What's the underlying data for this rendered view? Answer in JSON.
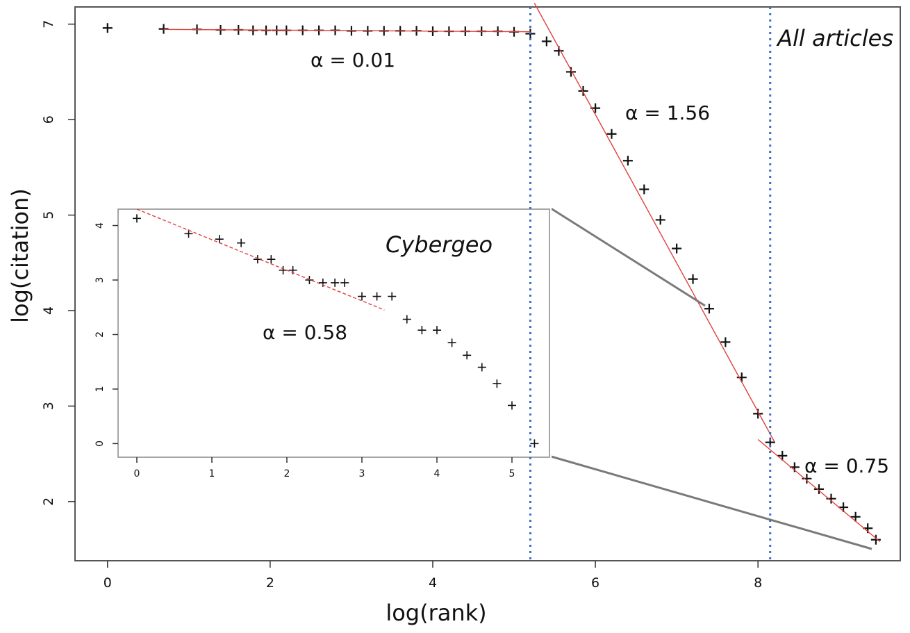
{
  "chart_data": [
    {
      "type": "scatter",
      "title": "All articles",
      "xlabel": "log(rank)",
      "ylabel": "log(citation)",
      "xlim": [
        -0.4,
        9.75
      ],
      "ylim": [
        1.38,
        7.18
      ],
      "xticks": [
        0,
        2,
        4,
        6,
        8
      ],
      "yticks": [
        2,
        3,
        4,
        5,
        6,
        7
      ],
      "grid": false,
      "series": [
        {
          "points": [
            [
              0,
              6.96
            ],
            [
              0.69,
              6.95
            ],
            [
              1.1,
              6.945
            ],
            [
              1.39,
              6.94
            ],
            [
              1.61,
              6.94
            ],
            [
              1.79,
              6.935
            ],
            [
              1.95,
              6.935
            ],
            [
              2.08,
              6.935
            ],
            [
              2.2,
              6.935
            ],
            [
              2.4,
              6.935
            ],
            [
              2.6,
              6.935
            ],
            [
              2.8,
              6.935
            ],
            [
              3.0,
              6.93
            ],
            [
              3.2,
              6.93
            ],
            [
              3.4,
              6.93
            ],
            [
              3.6,
              6.93
            ],
            [
              3.8,
              6.93
            ],
            [
              4.0,
              6.925
            ],
            [
              4.2,
              6.925
            ],
            [
              4.4,
              6.925
            ],
            [
              4.6,
              6.925
            ],
            [
              4.8,
              6.925
            ],
            [
              5.0,
              6.92
            ],
            [
              5.2,
              6.9
            ],
            [
              5.4,
              6.82
            ],
            [
              5.55,
              6.72
            ],
            [
              5.7,
              6.5
            ],
            [
              5.85,
              6.3
            ],
            [
              6.0,
              6.12
            ],
            [
              6.2,
              5.85
            ],
            [
              6.4,
              5.57
            ],
            [
              6.6,
              5.27
            ],
            [
              6.8,
              4.95
            ],
            [
              7.0,
              4.65
            ],
            [
              7.2,
              4.33
            ],
            [
              7.4,
              4.02
            ],
            [
              7.6,
              3.67
            ],
            [
              7.8,
              3.3
            ],
            [
              8.0,
              2.92
            ],
            [
              8.15,
              2.62
            ],
            [
              8.3,
              2.48
            ],
            [
              8.45,
              2.36
            ],
            [
              8.6,
              2.24
            ],
            [
              8.75,
              2.13
            ],
            [
              8.9,
              2.03
            ],
            [
              9.05,
              1.94
            ],
            [
              9.2,
              1.84
            ],
            [
              9.35,
              1.72
            ],
            [
              9.45,
              1.6
            ]
          ]
        }
      ],
      "fits": [
        {
          "label": "α = 0.01",
          "x": [
            0.69,
            5.2
          ],
          "y": [
            6.945,
            6.92
          ]
        },
        {
          "label": "α = 1.56",
          "x": [
            5.25,
            8.2
          ],
          "y": [
            7.22,
            2.63
          ]
        },
        {
          "label": "α = 0.75",
          "x": [
            8.0,
            9.5
          ],
          "y": [
            2.65,
            1.58
          ]
        }
      ],
      "vlines": [
        5.2,
        8.15
      ],
      "annotations": [
        "α = 0.01",
        "α = 1.56",
        "α = 0.75"
      ]
    },
    {
      "type": "scatter",
      "title": "Cybergeo",
      "xlim": [
        -0.25,
        5.5
      ],
      "ylim": [
        -0.25,
        4.3
      ],
      "xticks": [
        0,
        1,
        2,
        3,
        4,
        5
      ],
      "yticks": [
        0,
        1,
        2,
        3,
        4
      ],
      "grid": false,
      "series": [
        {
          "points": [
            [
              0,
              4.13
            ],
            [
              0.69,
              3.85
            ],
            [
              1.1,
              3.75
            ],
            [
              1.39,
              3.68
            ],
            [
              1.61,
              3.38
            ],
            [
              1.79,
              3.38
            ],
            [
              1.95,
              3.18
            ],
            [
              2.08,
              3.18
            ],
            [
              2.3,
              3.0
            ],
            [
              2.48,
              2.95
            ],
            [
              2.64,
              2.95
            ],
            [
              2.77,
              2.95
            ],
            [
              3.0,
              2.7
            ],
            [
              3.2,
              2.7
            ],
            [
              3.4,
              2.7
            ],
            [
              3.6,
              2.28
            ],
            [
              3.8,
              2.08
            ],
            [
              4.0,
              2.08
            ],
            [
              4.2,
              1.85
            ],
            [
              4.4,
              1.62
            ],
            [
              4.6,
              1.4
            ],
            [
              4.8,
              1.1
            ],
            [
              5.0,
              0.7
            ],
            [
              5.3,
              0.0
            ]
          ]
        }
      ],
      "fits": [
        {
          "label": "α = 0.58",
          "x": [
            0,
            3.3
          ],
          "y": [
            4.3,
            2.45
          ]
        }
      ],
      "annotations": [
        "α = 0.58"
      ]
    }
  ],
  "colors": {
    "points": "#111111",
    "fit": "#e0413c",
    "vline": "#3a6fc4",
    "frame": "#555555",
    "zoom": "#7a7a7a"
  }
}
